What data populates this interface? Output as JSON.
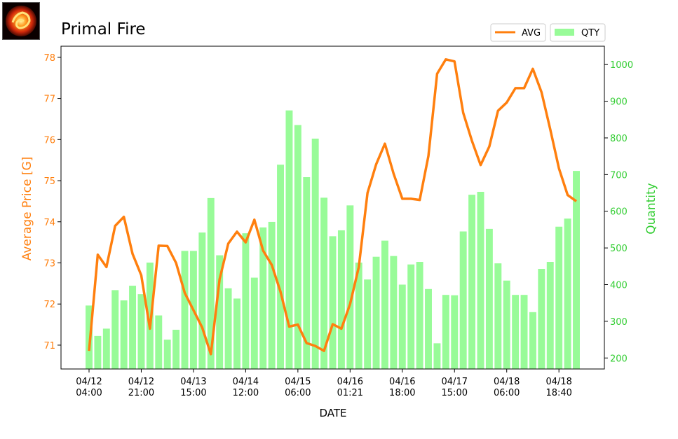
{
  "chart_data": {
    "type": "bar",
    "title": "Primal Fire",
    "xlabel": "DATE",
    "ylabel_left": "Average Price [G]",
    "ylabel_right": "Quantity",
    "colors": {
      "avg": "#ff7f0e",
      "qty": "#98fb98",
      "left_axis": "#ff7f0e",
      "right_axis": "#32cd32"
    },
    "legend": {
      "placement": "top-right",
      "entries": [
        "AVG",
        "QTY"
      ]
    },
    "ylim_left": [
      70.42,
      78.27
    ],
    "ylim_right": [
      170,
      1050
    ],
    "left_ticks": [
      71,
      72,
      73,
      74,
      75,
      76,
      77,
      78
    ],
    "right_ticks": [
      200,
      300,
      400,
      500,
      600,
      700,
      800,
      900,
      1000
    ],
    "x_ticks": [
      {
        "index": 0,
        "label": [
          "04/12",
          "04:00"
        ]
      },
      {
        "index": 6,
        "label": [
          "04/12",
          "21:00"
        ]
      },
      {
        "index": 12,
        "label": [
          "04/13",
          "15:00"
        ]
      },
      {
        "index": 18,
        "label": [
          "04/14",
          "12:00"
        ]
      },
      {
        "index": 24,
        "label": [
          "04/15",
          "06:00"
        ]
      },
      {
        "index": 30,
        "label": [
          "04/16",
          "01:21"
        ]
      },
      {
        "index": 36,
        "label": [
          "04/16",
          "18:00"
        ]
      },
      {
        "index": 42,
        "label": [
          "04/17",
          "15:00"
        ]
      },
      {
        "index": 48,
        "label": [
          "04/18",
          "06:00"
        ]
      },
      {
        "index": 54,
        "label": [
          "04/18",
          "18:40"
        ]
      }
    ],
    "series": [
      {
        "name": "AVG",
        "type": "line",
        "values": [
          70.86,
          73.2,
          72.9,
          73.9,
          74.12,
          73.22,
          72.7,
          71.4,
          73.42,
          73.41,
          73.0,
          72.27,
          71.85,
          71.43,
          70.78,
          72.6,
          73.47,
          73.76,
          73.5,
          74.05,
          73.3,
          72.95,
          72.3,
          71.45,
          71.5,
          71.05,
          70.98,
          70.86,
          71.51,
          71.4,
          72.0,
          72.9,
          74.7,
          75.4,
          75.9,
          75.17,
          74.56,
          74.56,
          74.53,
          75.6,
          77.6,
          77.95,
          77.9,
          76.65,
          75.97,
          75.38,
          75.83,
          76.7,
          76.9,
          77.25,
          77.25,
          77.72,
          77.15,
          76.25,
          75.3,
          74.65,
          74.5
        ]
      },
      {
        "name": "QTY",
        "type": "bar",
        "values": [
          343,
          260,
          280,
          385,
          357,
          397,
          374,
          460,
          316,
          250,
          277,
          492,
          492,
          542,
          636,
          480,
          390,
          362,
          540,
          419,
          556,
          571,
          727,
          875,
          835,
          693,
          798,
          637,
          532,
          548,
          616,
          460,
          414,
          476,
          520,
          478,
          400,
          455,
          462,
          388,
          240,
          372,
          371,
          545,
          645,
          653,
          552,
          458,
          411,
          372,
          372,
          325,
          443,
          462,
          558,
          580,
          710
        ]
      }
    ]
  }
}
